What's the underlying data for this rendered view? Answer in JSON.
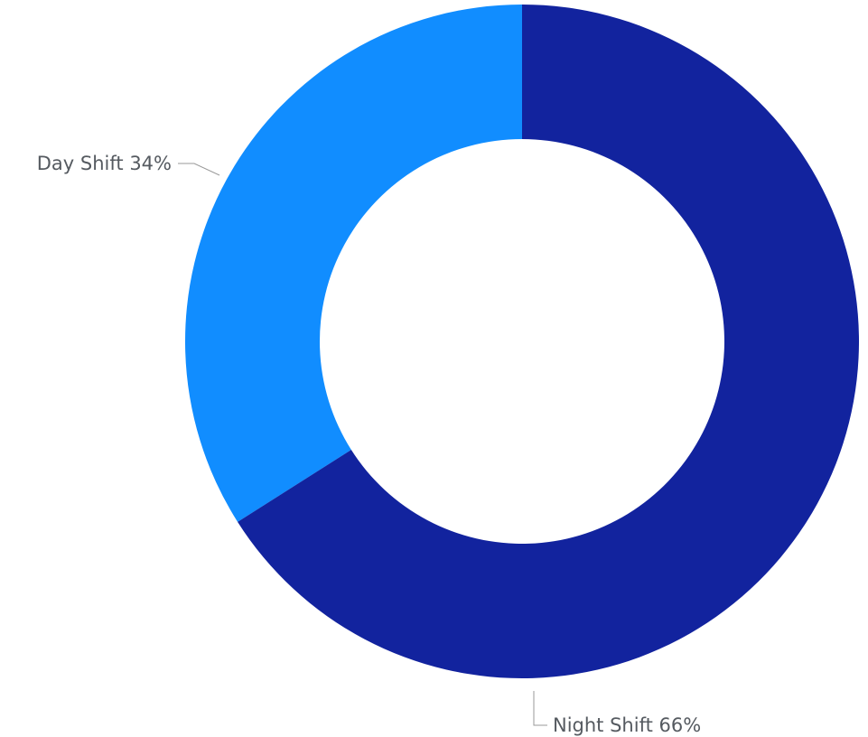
{
  "chart_data": {
    "type": "pie",
    "donut": true,
    "start_angle": "12 o'clock",
    "direction": "counterclockwise",
    "slices": [
      {
        "label": "Day Shift",
        "value": 34,
        "percent_label": "34%",
        "color": "#118dff"
      },
      {
        "label": "Night Shift",
        "value": 66,
        "percent_label": "66%",
        "color": "#12239e"
      }
    ],
    "title": "",
    "legend": "none"
  }
}
